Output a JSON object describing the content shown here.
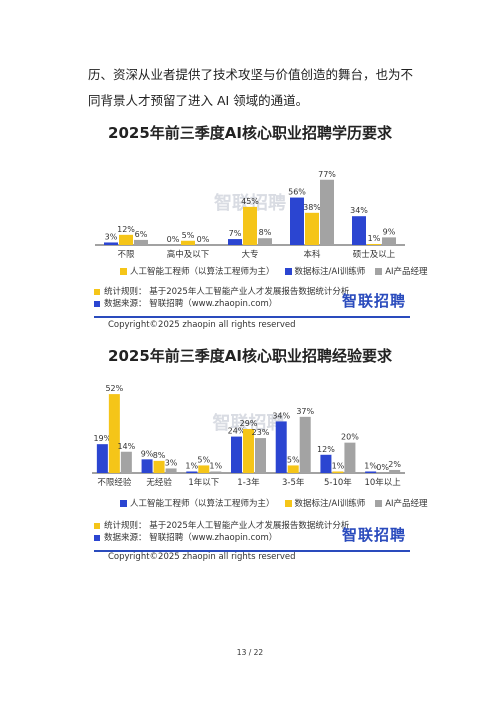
{
  "intro_text": "历、资深从业者提供了技术攻坚与价值创造的舞台，也为不同背景人才预留了进入 AI 领域的通道。",
  "colors": {
    "ai_engineer": "#2b45d1",
    "data_annotator": "#f5c518",
    "ai_product": "#a3a3a3",
    "brand": "#2a4bbd"
  },
  "legend": [
    "人工智能工程师（以算法工程师为主）",
    "数据标注/AI训练师",
    "AI产品经理"
  ],
  "source_note": {
    "stat_rule": "统计规则：  基于2025年人工智能产业人才发展报告数据统计分析",
    "data_source": "数据来源：  智联招聘（www.zhaopin.com）",
    "logo": "智联招聘"
  },
  "copyright": "Copyright©2025 zhaopin all rights reserved",
  "page_number": "13 / 22",
  "chart_data": [
    {
      "type": "bar",
      "title": "2025年前三季度AI核心职业招聘学历要求",
      "categories": [
        "不限",
        "高中及以下",
        "大专",
        "本科",
        "硕士及以上"
      ],
      "ylim": [
        0,
        85
      ],
      "series": [
        {
          "name": "人工智能工程师（以算法工程师为主）",
          "values": [
            3,
            0,
            7,
            56,
            34
          ],
          "labels": [
            "3%",
            "0%",
            "7%",
            "56%",
            "34%"
          ]
        },
        {
          "name": "数据标注/AI训练师",
          "values": [
            12,
            5,
            45,
            38,
            1
          ],
          "labels": [
            "12%",
            "5%",
            "45%",
            "38%",
            "1%"
          ]
        },
        {
          "name": "AI产品经理",
          "values": [
            6,
            0,
            8,
            77,
            9
          ],
          "labels": [
            "6%",
            "0%",
            "8%",
            "77%",
            "9%"
          ]
        }
      ]
    },
    {
      "type": "bar",
      "title": "2025年前三季度AI核心职业招聘经验要求",
      "categories": [
        "不限经验",
        "无经验",
        "1年以下",
        "1-3年",
        "3-5年",
        "5-10年",
        "10年以上"
      ],
      "ylim": [
        0,
        58
      ],
      "series": [
        {
          "name": "人工智能工程师",
          "values": [
            19,
            9,
            1,
            24,
            34,
            12,
            1
          ],
          "labels": [
            "19%",
            "9%",
            "1%",
            "24%",
            "34%",
            "12%",
            "1%"
          ]
        },
        {
          "name": "数据标注/AI训练师",
          "values": [
            52,
            8,
            5,
            29,
            5,
            1,
            0
          ],
          "labels": [
            "52%",
            "8%",
            "5%",
            "29%",
            "5%",
            "1%",
            "0%"
          ]
        },
        {
          "name": "AI产品经理",
          "values": [
            14,
            3,
            1,
            23,
            37,
            20,
            2
          ],
          "labels": [
            "14%",
            "3%",
            "1%",
            "23%",
            "37%",
            "20%",
            "2%"
          ]
        }
      ]
    }
  ]
}
